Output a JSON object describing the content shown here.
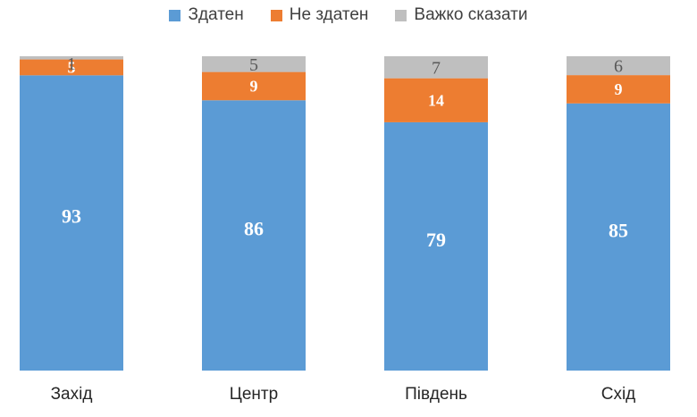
{
  "chart_data": {
    "type": "bar",
    "stacked": true,
    "title": "",
    "xlabel": "",
    "ylabel": "",
    "ylim": [
      0,
      100
    ],
    "grid": false,
    "legend_position": "top",
    "categories": [
      "Захід",
      "Центр",
      "Південь",
      "Схід"
    ],
    "series": [
      {
        "name": "Здатен",
        "color": "#5B9BD5",
        "values": [
          93,
          86,
          79,
          85
        ]
      },
      {
        "name": "Не здатен",
        "color": "#ED7D31",
        "values": [
          5,
          9,
          14,
          9
        ]
      },
      {
        "name": "Важко сказати",
        "color": "#BFBFBF",
        "values": [
          1,
          5,
          7,
          6
        ]
      }
    ]
  }
}
